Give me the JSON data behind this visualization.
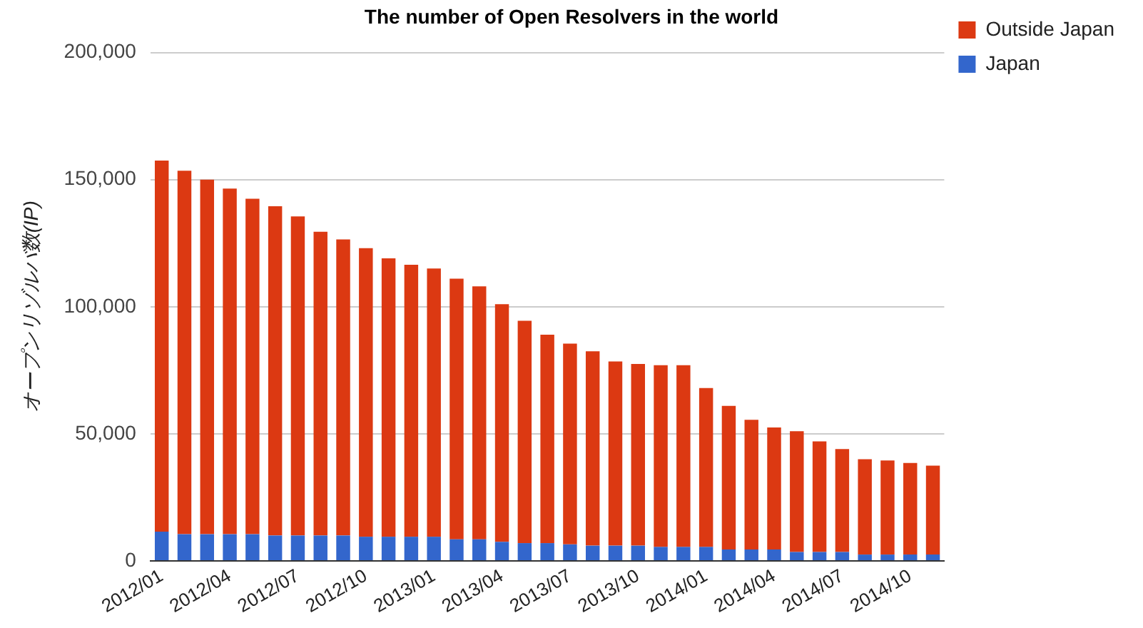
{
  "chart_data": {
    "type": "bar",
    "title": "The number of Open Resolvers in the world",
    "ylabel": "オープンリゾルバ数(IP)",
    "categories": [
      "2012/01",
      null,
      null,
      "2012/04",
      null,
      null,
      "2012/07",
      null,
      null,
      "2012/10",
      null,
      null,
      "2013/01",
      null,
      null,
      "2013/04",
      null,
      null,
      "2013/07",
      null,
      null,
      "2013/10",
      null,
      null,
      "2014/01",
      null,
      null,
      "2014/04",
      null,
      null,
      "2014/07",
      null,
      null,
      "2014/10",
      null
    ],
    "stacked": true,
    "series": [
      {
        "name": "Japan",
        "color": "#3366cc",
        "values": [
          11500,
          10500,
          10500,
          10500,
          10500,
          10000,
          10000,
          10000,
          10000,
          9500,
          9500,
          9500,
          9500,
          8500,
          8500,
          7500,
          7000,
          7000,
          6500,
          6000,
          6000,
          6000,
          5500,
          5500,
          5500,
          4500,
          4500,
          4500,
          3500,
          3500,
          3500,
          2500,
          2500,
          2500,
          2500
        ]
      },
      {
        "name": "Outside Japan",
        "color": "#dc3912",
        "values": [
          146000,
          143000,
          139500,
          136000,
          132000,
          129500,
          125500,
          119500,
          116500,
          113500,
          109500,
          107000,
          105500,
          102500,
          99500,
          93500,
          87500,
          82000,
          79000,
          76500,
          72500,
          71500,
          71500,
          71500,
          62500,
          56500,
          51000,
          48000,
          47500,
          43500,
          40500,
          37500,
          37000,
          36000,
          35000
        ]
      }
    ],
    "ylim": [
      0,
      200000
    ],
    "yticks": [
      0,
      {
        "value": 50000,
        "label": "50,000"
      },
      {
        "value": 100000,
        "label": "100,000"
      },
      {
        "value": 150000,
        "label": "150,000"
      },
      {
        "value": 200000,
        "label": "200,000"
      }
    ],
    "grid": "y",
    "legend": "top right"
  }
}
